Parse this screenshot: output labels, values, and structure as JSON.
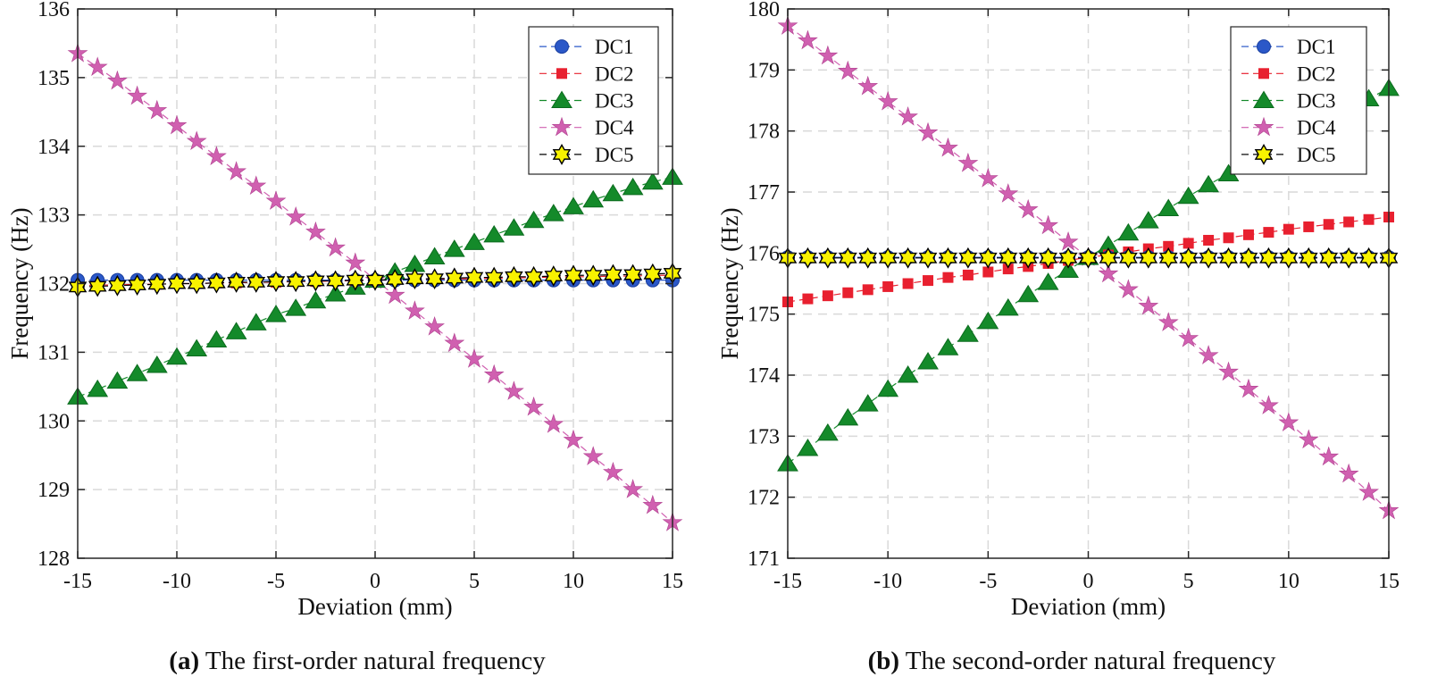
{
  "colors": {
    "DC1": "#2b58c8",
    "DC2": "#e8202f",
    "DC3": "#148a2a",
    "DC4": "#d060b0",
    "DC5": "#f8f200"
  },
  "chart_data": [
    {
      "type": "line",
      "caption_label": "(a)",
      "caption_text": "The first-order natural frequency",
      "title": "",
      "xlabel": "Deviation (mm)",
      "ylabel": "Frequency (Hz)",
      "xlim": [
        -15,
        15
      ],
      "ylim": [
        128,
        136
      ],
      "xticks": [
        -15,
        -10,
        -5,
        0,
        5,
        10,
        15
      ],
      "xtick_labels": [
        "-15",
        "-10",
        "-5",
        "0",
        "5",
        "10",
        "15"
      ],
      "yticks": [
        128,
        129,
        130,
        131,
        132,
        133,
        134,
        135,
        136
      ],
      "ytick_labels": [
        "128",
        "129",
        "130",
        "131",
        "132",
        "133",
        "134",
        "135",
        "136"
      ],
      "grid": true,
      "legend_position": "top-right",
      "x": [
        -15,
        -14,
        -13,
        -12,
        -11,
        -10,
        -9,
        -8,
        -7,
        -6,
        -5,
        -4,
        -3,
        -2,
        -1,
        0,
        1,
        2,
        3,
        4,
        5,
        6,
        7,
        8,
        9,
        10,
        11,
        12,
        13,
        14,
        15
      ],
      "series": [
        {
          "name": "DC1",
          "marker": "circle",
          "values": [
            132.05,
            132.05,
            132.05,
            132.05,
            132.05,
            132.05,
            132.05,
            132.05,
            132.05,
            132.05,
            132.05,
            132.05,
            132.05,
            132.05,
            132.05,
            132.05,
            132.05,
            132.05,
            132.05,
            132.05,
            132.05,
            132.05,
            132.05,
            132.05,
            132.05,
            132.05,
            132.05,
            132.05,
            132.05,
            132.05,
            132.05
          ]
        },
        {
          "name": "DC2",
          "marker": "square",
          "values": [
            131.97,
            131.98,
            131.98,
            131.99,
            131.99,
            132.0,
            132.0,
            132.01,
            132.01,
            132.02,
            132.02,
            132.03,
            132.03,
            132.04,
            132.04,
            132.05,
            132.05,
            132.06,
            132.06,
            132.07,
            132.07,
            132.08,
            132.08,
            132.09,
            132.09,
            132.1,
            132.1,
            132.11,
            132.11,
            132.12,
            132.12
          ]
        },
        {
          "name": "DC3",
          "marker": "triangle",
          "values": [
            130.35,
            130.46,
            130.58,
            130.69,
            130.81,
            130.93,
            131.05,
            131.18,
            131.3,
            131.43,
            131.55,
            131.64,
            131.75,
            131.85,
            131.95,
            132.05,
            132.17,
            132.28,
            132.39,
            132.5,
            132.6,
            132.71,
            132.81,
            132.92,
            133.02,
            133.12,
            133.22,
            133.31,
            133.4,
            133.48,
            133.55
          ]
        },
        {
          "name": "DC4",
          "marker": "star",
          "values": [
            135.35,
            135.15,
            134.95,
            134.73,
            134.52,
            134.3,
            134.07,
            133.85,
            133.63,
            133.42,
            133.2,
            132.97,
            132.75,
            132.52,
            132.3,
            132.05,
            131.83,
            131.6,
            131.37,
            131.13,
            130.9,
            130.67,
            130.43,
            130.2,
            129.95,
            129.72,
            129.48,
            129.25,
            129.0,
            128.77,
            128.52
          ]
        },
        {
          "name": "DC5",
          "marker": "hexagram",
          "values": [
            131.95,
            131.96,
            131.97,
            131.98,
            131.99,
            132.0,
            132.0,
            132.01,
            132.02,
            132.02,
            132.03,
            132.03,
            132.04,
            132.04,
            132.05,
            132.05,
            132.06,
            132.07,
            132.07,
            132.08,
            132.09,
            132.09,
            132.1,
            132.1,
            132.11,
            132.12,
            132.12,
            132.13,
            132.13,
            132.14,
            132.15
          ]
        }
      ]
    },
    {
      "type": "line",
      "caption_label": "(b)",
      "caption_text": "The second-order natural frequency",
      "title": "",
      "xlabel": "Deviation (mm)",
      "ylabel": "Frequency (Hz)",
      "xlim": [
        -15,
        15
      ],
      "ylim": [
        171,
        180
      ],
      "xticks": [
        -15,
        -10,
        -5,
        0,
        5,
        10,
        15
      ],
      "xtick_labels": [
        "-15",
        "-10",
        "-5",
        "0",
        "5",
        "10",
        "15"
      ],
      "yticks": [
        171,
        172,
        173,
        174,
        175,
        176,
        177,
        178,
        179,
        180
      ],
      "ytick_labels": [
        "171",
        "172",
        "173",
        "174",
        "175",
        "176",
        "177",
        "178",
        "179",
        "180"
      ],
      "grid": true,
      "legend_position": "top-right",
      "x": [
        -15,
        -14,
        -13,
        -12,
        -11,
        -10,
        -9,
        -8,
        -7,
        -6,
        -5,
        -4,
        -3,
        -2,
        -1,
        0,
        1,
        2,
        3,
        4,
        5,
        6,
        7,
        8,
        9,
        10,
        11,
        12,
        13,
        14,
        15
      ],
      "series": [
        {
          "name": "DC1",
          "marker": "circle",
          "values": [
            175.93,
            175.93,
            175.93,
            175.93,
            175.93,
            175.93,
            175.93,
            175.93,
            175.93,
            175.93,
            175.93,
            175.93,
            175.93,
            175.93,
            175.93,
            175.93,
            175.93,
            175.93,
            175.93,
            175.93,
            175.93,
            175.93,
            175.93,
            175.93,
            175.93,
            175.93,
            175.93,
            175.93,
            175.93,
            175.93,
            175.93
          ]
        },
        {
          "name": "DC2",
          "marker": "square",
          "values": [
            175.2,
            175.25,
            175.3,
            175.35,
            175.4,
            175.45,
            175.5,
            175.55,
            175.6,
            175.64,
            175.69,
            175.74,
            175.78,
            175.83,
            175.88,
            175.93,
            175.97,
            176.02,
            176.07,
            176.11,
            176.16,
            176.21,
            176.25,
            176.3,
            176.34,
            176.39,
            176.43,
            176.47,
            176.51,
            176.55,
            176.59
          ]
        },
        {
          "name": "DC3",
          "marker": "triangle",
          "values": [
            172.55,
            172.8,
            173.05,
            173.3,
            173.53,
            173.77,
            174.0,
            174.22,
            174.45,
            174.67,
            174.88,
            175.1,
            175.32,
            175.52,
            175.72,
            175.93,
            176.13,
            176.33,
            176.53,
            176.73,
            176.93,
            177.12,
            177.3,
            177.5,
            177.68,
            177.86,
            178.03,
            178.2,
            178.37,
            178.53,
            178.7
          ]
        },
        {
          "name": "DC4",
          "marker": "star",
          "values": [
            179.72,
            179.48,
            179.23,
            178.98,
            178.73,
            178.48,
            178.23,
            177.97,
            177.72,
            177.47,
            177.22,
            176.97,
            176.71,
            176.45,
            176.18,
            175.93,
            175.66,
            175.4,
            175.13,
            174.86,
            174.6,
            174.32,
            174.05,
            173.77,
            173.5,
            173.22,
            172.94,
            172.66,
            172.38,
            172.08,
            171.78
          ]
        },
        {
          "name": "DC5",
          "marker": "hexagram",
          "values": [
            175.92,
            175.92,
            175.92,
            175.92,
            175.92,
            175.92,
            175.92,
            175.92,
            175.92,
            175.92,
            175.92,
            175.92,
            175.92,
            175.92,
            175.92,
            175.92,
            175.92,
            175.92,
            175.92,
            175.92,
            175.92,
            175.92,
            175.92,
            175.92,
            175.92,
            175.92,
            175.92,
            175.92,
            175.92,
            175.92,
            175.92
          ]
        }
      ]
    }
  ]
}
